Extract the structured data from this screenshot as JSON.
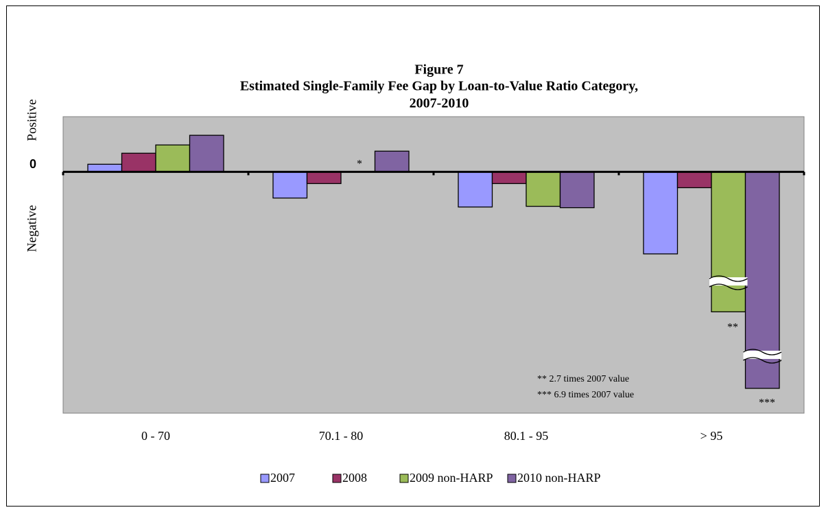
{
  "chart_data": {
    "type": "bar",
    "title": [
      "Figure 7",
      "Estimated Single-Family  Fee Gap by Loan-to-Value Ratio Category,",
      "2007-2010"
    ],
    "y_label_positive": "Positive",
    "y_label_negative": "Negative",
    "categories": [
      "0 - 70",
      "70.1 - 80",
      "80.1 - 95",
      "> 95"
    ],
    "series": [
      {
        "name": "2007",
        "color": "#9999ff",
        "values": [
          1.1,
          -3.8,
          -5.1,
          -11.9
        ]
      },
      {
        "name": "2008",
        "color": "#993366",
        "values": [
          2.7,
          -1.7,
          -1.7,
          -2.3
        ]
      },
      {
        "name": "2009 non-HARP",
        "color": "#9bbb59",
        "values": [
          3.9,
          null,
          -5.0,
          -20.3
        ]
      },
      {
        "name": "2010 non-HARP",
        "color": "#8064a2",
        "values": [
          5.3,
          3.0,
          -5.2,
          -31.4
        ]
      }
    ],
    "ylim": [
      -35,
      8
    ],
    "yticks": [
      0
    ],
    "annotations": [
      "*",
      "**",
      "***",
      "** 2.7 times 2007 value",
      "*** 6.9 times 2007 value"
    ],
    "plot_background": "#c0c0c0"
  }
}
